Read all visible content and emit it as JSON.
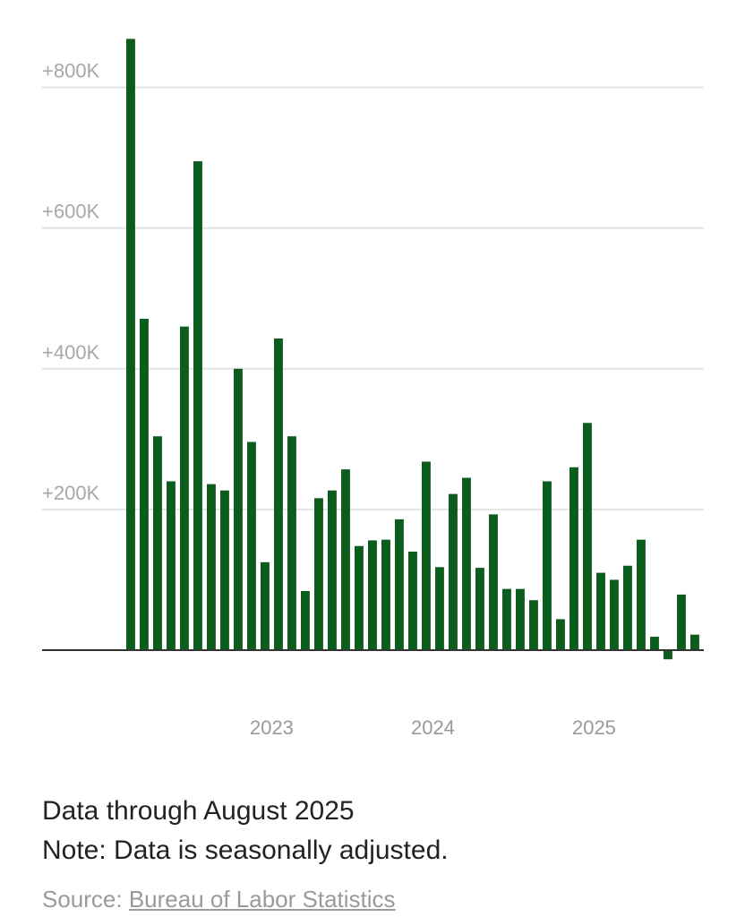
{
  "chart_data": {
    "type": "bar",
    "title": "",
    "xlabel": "",
    "ylabel": "",
    "bar_color": "#0b5d1e",
    "ylim": [
      -15,
      870
    ],
    "y_ticks": [
      {
        "value": 800,
        "label": "+800K"
      },
      {
        "value": 600,
        "label": "+600K"
      },
      {
        "value": 400,
        "label": "+400K"
      },
      {
        "value": 200,
        "label": "+200K"
      }
    ],
    "x_ticks": [
      {
        "after_index": 10,
        "label": "2023"
      },
      {
        "after_index": 22,
        "label": "2024"
      },
      {
        "after_index": 34,
        "label": "2025"
      }
    ],
    "grid": true,
    "values": [
      869,
      471,
      304,
      240,
      460,
      695,
      236,
      227,
      400,
      296,
      125,
      443,
      304,
      84,
      216,
      227,
      257,
      148,
      156,
      157,
      186,
      140,
      268,
      118,
      222,
      245,
      117,
      193,
      87,
      87,
      71,
      240,
      44,
      260,
      323,
      110,
      100,
      120,
      157,
      19,
      -13,
      79,
      22
    ],
    "units": "thousands of jobs"
  },
  "footer": {
    "line1": "Data through August 2025",
    "line2": "Note: Data is seasonally adjusted.",
    "source_prefix": "Source: ",
    "source_link": "Bureau of Labor Statistics"
  }
}
